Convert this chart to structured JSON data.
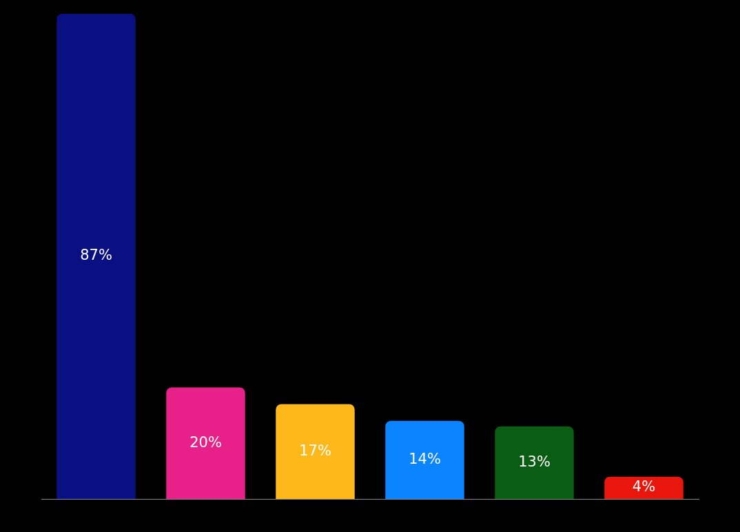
{
  "chart_data": {
    "type": "bar",
    "categories": [
      null,
      null,
      null,
      null,
      null,
      null
    ],
    "values": [
      87,
      20,
      17,
      14,
      13,
      4
    ],
    "colors": [
      "#0a0f82",
      "#e8208a",
      "#ffb81a",
      "#0a84ff",
      "#0a5e14",
      "#e8160c"
    ],
    "value_labels": [
      "87%",
      "20%",
      "17%",
      "14%",
      "13%",
      "4%"
    ],
    "ylim": [
      0,
      87
    ],
    "tick_labels": false
  }
}
